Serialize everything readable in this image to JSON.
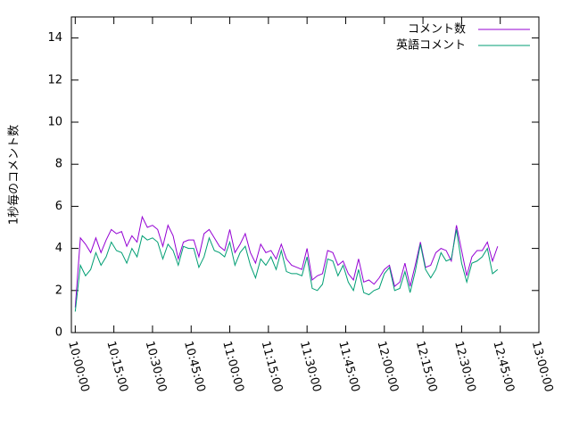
{
  "chart_data": {
    "type": "line",
    "ylabel": "1秒毎のコメント数",
    "x": [
      "10:00:00",
      "10:02:00",
      "10:04:00",
      "10:06:00",
      "10:08:00",
      "10:10:00",
      "10:12:00",
      "10:14:00",
      "10:16:00",
      "10:18:00",
      "10:20:00",
      "10:22:00",
      "10:24:00",
      "10:26:00",
      "10:28:00",
      "10:30:00",
      "10:32:00",
      "10:34:00",
      "10:36:00",
      "10:38:00",
      "10:40:00",
      "10:42:00",
      "10:44:00",
      "10:46:00",
      "10:48:00",
      "10:50:00",
      "10:52:00",
      "10:54:00",
      "10:56:00",
      "10:58:00",
      "11:00:00",
      "11:02:00",
      "11:04:00",
      "11:06:00",
      "11:08:00",
      "11:10:00",
      "11:12:00",
      "11:14:00",
      "11:16:00",
      "11:18:00",
      "11:20:00",
      "11:22:00",
      "11:24:00",
      "11:26:00",
      "11:28:00",
      "11:30:00",
      "11:32:00",
      "11:34:00",
      "11:36:00",
      "11:38:00",
      "11:40:00",
      "11:42:00",
      "11:44:00",
      "11:46:00",
      "11:48:00",
      "11:50:00",
      "11:52:00",
      "11:54:00",
      "11:56:00",
      "11:58:00",
      "12:00:00",
      "12:02:00",
      "12:04:00",
      "12:06:00",
      "12:08:00",
      "12:10:00",
      "12:12:00",
      "12:14:00",
      "12:16:00",
      "12:18:00",
      "12:20:00",
      "12:22:00",
      "12:24:00",
      "12:26:00",
      "12:28:00",
      "12:30:00",
      "12:32:00",
      "12:34:00",
      "12:36:00",
      "12:38:00",
      "12:40:00",
      "12:42:00",
      "12:44:00"
    ],
    "series": [
      {
        "name": "コメント数",
        "color": "#9400d3",
        "values": [
          1.2,
          4.5,
          4.2,
          3.8,
          4.5,
          3.8,
          4.4,
          4.9,
          4.7,
          4.8,
          4.1,
          4.6,
          4.3,
          5.5,
          5.0,
          5.1,
          4.9,
          4.1,
          5.1,
          4.6,
          3.5,
          4.3,
          4.4,
          4.4,
          3.6,
          4.7,
          4.9,
          4.5,
          4.1,
          3.9,
          4.9,
          3.8,
          4.2,
          4.7,
          3.8,
          3.3,
          4.2,
          3.8,
          3.9,
          3.5,
          4.2,
          3.5,
          3.2,
          3.1,
          3.0,
          4.0,
          2.5,
          2.7,
          2.8,
          3.9,
          3.8,
          3.2,
          3.4,
          2.8,
          2.5,
          3.5,
          2.4,
          2.5,
          2.3,
          2.6,
          3.0,
          3.2,
          2.2,
          2.4,
          3.3,
          2.2,
          3.2,
          4.3,
          3.1,
          3.2,
          3.8,
          4.0,
          3.9,
          3.4,
          5.1,
          3.9,
          2.7,
          3.6,
          3.9,
          3.9,
          4.3,
          3.4,
          4.1
        ]
      },
      {
        "name": "英語コメント",
        "color": "#009e73",
        "values": [
          1.0,
          3.2,
          2.7,
          3.0,
          3.8,
          3.2,
          3.6,
          4.3,
          3.9,
          3.8,
          3.3,
          4.0,
          3.6,
          4.6,
          4.4,
          4.5,
          4.3,
          3.5,
          4.2,
          3.9,
          3.2,
          4.1,
          4.0,
          4.0,
          3.1,
          3.6,
          4.5,
          3.9,
          3.8,
          3.6,
          4.3,
          3.2,
          3.8,
          4.1,
          3.2,
          2.6,
          3.5,
          3.2,
          3.6,
          3.0,
          3.9,
          2.9,
          2.8,
          2.8,
          2.7,
          3.6,
          2.1,
          2.0,
          2.3,
          3.5,
          3.4,
          2.7,
          3.2,
          2.4,
          2.0,
          3.0,
          1.9,
          1.8,
          2.0,
          2.1,
          2.8,
          3.1,
          2.0,
          2.1,
          2.9,
          1.9,
          2.9,
          4.2,
          3.0,
          2.6,
          3.0,
          3.8,
          3.4,
          3.5,
          4.9,
          3.3,
          2.4,
          3.3,
          3.4,
          3.6,
          4.0,
          2.8,
          3.0
        ]
      }
    ],
    "xlim": [
      "09:58:30",
      "13:00:00"
    ],
    "xticks": [
      "10:00:00",
      "10:15:00",
      "10:30:00",
      "10:45:00",
      "11:00:00",
      "11:15:00",
      "11:30:00",
      "11:45:00",
      "12:00:00",
      "12:15:00",
      "12:30:00",
      "12:45:00",
      "13:00:00"
    ],
    "ylim": [
      0,
      15
    ],
    "yticks": [
      0,
      2,
      4,
      6,
      8,
      10,
      12,
      14
    ],
    "legend": "upper right"
  }
}
